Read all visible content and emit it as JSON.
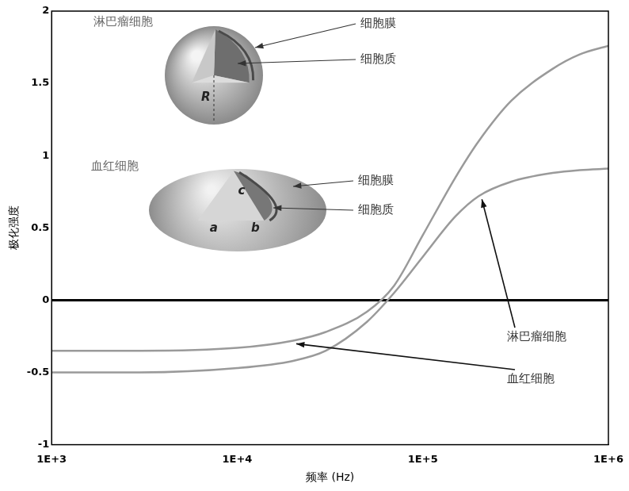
{
  "chart_data": {
    "type": "line",
    "x_label": "频率 (Hz)",
    "y_label": "极化强度",
    "log": "x",
    "grid": false,
    "xlim": [
      1000,
      1000000
    ],
    "xticks": [
      {
        "value": 1000,
        "label": "1E+3"
      },
      {
        "value": 10000,
        "label": "1E+4"
      },
      {
        "value": 100000,
        "label": "1E+5"
      },
      {
        "value": 1000000,
        "label": "1E+6"
      }
    ],
    "ylim": [
      -1,
      2
    ],
    "yticks": [
      -1,
      -0.5,
      0,
      0.5,
      1,
      1.5,
      2
    ],
    "x": [
      1000,
      3000,
      10000,
      20000,
      30000,
      50000,
      70000,
      100000,
      150000,
      200000,
      300000,
      500000,
      700000,
      1000000
    ],
    "series": [
      {
        "name": "淋巴瘤细胞",
        "color": "#9a9a9a",
        "line_style": "solid",
        "values": [
          -0.5,
          -0.5,
          -0.47,
          -0.42,
          -0.35,
          -0.15,
          0.05,
          0.3,
          0.58,
          0.72,
          0.82,
          0.88,
          0.9,
          0.91
        ]
      },
      {
        "name": "血红细胞",
        "color": "#9a9a9a",
        "line_style": "solid",
        "values": [
          -0.35,
          -0.35,
          -0.33,
          -0.28,
          -0.22,
          -0.08,
          0.1,
          0.45,
          0.85,
          1.1,
          1.38,
          1.6,
          1.7,
          1.76
        ]
      }
    ],
    "insets": [
      {
        "title": "淋巴瘤细胞",
        "labels": [
          "细胞膜",
          "细胞质"
        ],
        "dimensions": [
          "R"
        ]
      },
      {
        "title": "血红细胞",
        "labels": [
          "细胞膜",
          "细胞质"
        ],
        "dimensions": [
          "a",
          "b",
          "c"
        ]
      }
    ]
  }
}
